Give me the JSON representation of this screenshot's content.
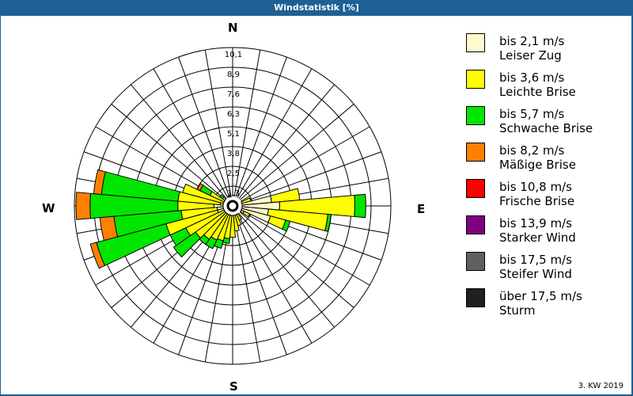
{
  "window": {
    "title": "Windstatistik [%]",
    "footer": "3. KW 2019"
  },
  "compass": {
    "n": "N",
    "e": "E",
    "s": "S",
    "w": "W"
  },
  "legend": [
    {
      "range": "bis 2,1 m/s",
      "name": "Leiser Zug",
      "color": "#fffacd"
    },
    {
      "range": "bis 3,6 m/s",
      "name": "Leichte Brise",
      "color": "#ffff00"
    },
    {
      "range": "bis 5,7 m/s",
      "name": "Schwache Brise",
      "color": "#00e600"
    },
    {
      "range": "bis 8,2 m/s",
      "name": "Mäßige Brise",
      "color": "#ff8000"
    },
    {
      "range": "bis 10,8 m/s",
      "name": "Frische Brise",
      "color": "#ff0000"
    },
    {
      "range": "bis 13,9 m/s",
      "name": "Starker Wind",
      "color": "#800080"
    },
    {
      "range": "bis 17,5 m/s",
      "name": "Steifer Wind",
      "color": "#606060"
    },
    {
      "range": "über 17,5 m/s",
      "name": "Sturm",
      "color": "#202020"
    }
  ],
  "chart_data": {
    "type": "wind_rose",
    "title": "Windstatistik [%]",
    "subtitle": "3. KW 2019",
    "unit": "%",
    "radial_ticks": [
      1.3,
      2.5,
      3.8,
      5.1,
      6.3,
      7.6,
      8.9,
      10.1
    ],
    "rmax": 10.1,
    "sector_width_deg": 10,
    "series_names": [
      "bis 2,1 m/s",
      "bis 3,6 m/s",
      "bis 5,7 m/s",
      "bis 8,2 m/s"
    ],
    "note": "cumulative percent per direction (outer edge of each band)",
    "directions": [
      {
        "deg": 70,
        "cum": [
          0.6,
          1.2,
          1.2,
          1.2
        ]
      },
      {
        "deg": 80,
        "cum": [
          2.5,
          4.3,
          4.3,
          4.3
        ]
      },
      {
        "deg": 90,
        "cum": [
          3.0,
          7.8,
          8.5,
          8.5
        ]
      },
      {
        "deg": 100,
        "cum": [
          2.3,
          6.1,
          6.3,
          6.3
        ]
      },
      {
        "deg": 110,
        "cum": [
          2.5,
          3.5,
          3.8,
          3.8
        ]
      },
      {
        "deg": 120,
        "cum": [
          0.8,
          1.2,
          1.2,
          1.2
        ]
      },
      {
        "deg": 150,
        "cum": [
          0.5,
          1.0,
          1.0,
          1.0
        ]
      },
      {
        "deg": 160,
        "cum": [
          0.5,
          1.3,
          1.3,
          1.3
        ]
      },
      {
        "deg": 170,
        "cum": [
          0.4,
          1.6,
          1.6,
          1.6
        ]
      },
      {
        "deg": 180,
        "cum": [
          0.3,
          2.0,
          2.0,
          2.0
        ]
      },
      {
        "deg": 190,
        "cum": [
          0.4,
          2.1,
          2.4,
          2.4
        ]
      },
      {
        "deg": 200,
        "cum": [
          0.4,
          2.3,
          2.8,
          2.8
        ]
      },
      {
        "deg": 210,
        "cum": [
          0.5,
          2.4,
          3.0,
          3.0
        ]
      },
      {
        "deg": 220,
        "cum": [
          0.5,
          2.6,
          3.0,
          3.0
        ]
      },
      {
        "deg": 230,
        "cum": [
          0.5,
          2.9,
          4.6,
          4.6
        ]
      },
      {
        "deg": 240,
        "cum": [
          0.6,
          3.3,
          4.4,
          4.4
        ]
      },
      {
        "deg": 250,
        "cum": [
          1.0,
          4.4,
          9.0,
          9.4
        ]
      },
      {
        "deg": 260,
        "cum": [
          1.0,
          3.3,
          7.6,
          8.5
        ]
      },
      {
        "deg": 270,
        "cum": [
          1.2,
          3.5,
          9.1,
          10.0
        ]
      },
      {
        "deg": 280,
        "cum": [
          0.8,
          3.5,
          8.4,
          8.9
        ]
      },
      {
        "deg": 290,
        "cum": [
          0.5,
          3.3,
          3.3,
          3.3
        ]
      },
      {
        "deg": 300,
        "cum": [
          0.5,
          1.6,
          2.3,
          2.5
        ]
      },
      {
        "deg": 310,
        "cum": [
          0.4,
          0.8,
          1.0,
          1.0
        ]
      },
      {
        "deg": 340,
        "cum": [
          0.3,
          0.3,
          0.7,
          0.7
        ]
      },
      {
        "deg": 350,
        "cum": [
          0.2,
          0.4,
          0.4,
          0.4
        ]
      }
    ]
  }
}
